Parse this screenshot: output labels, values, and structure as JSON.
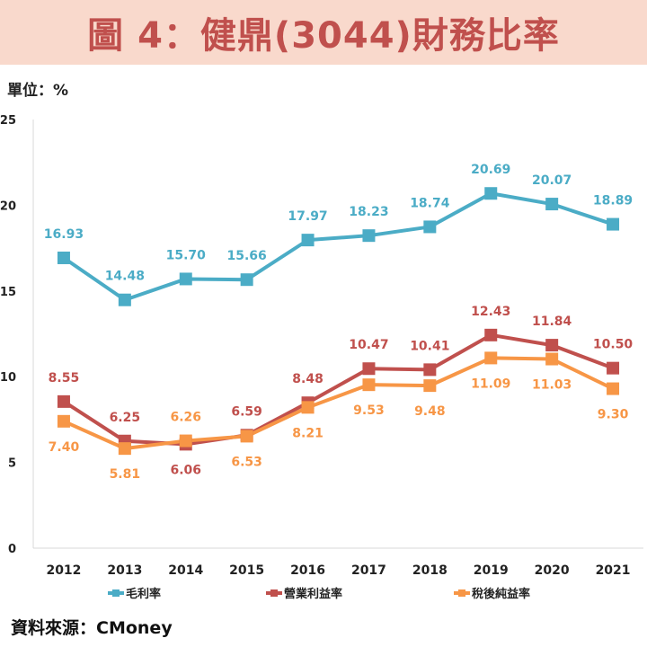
{
  "title": "圖 4：健鼎(3044)財務比率",
  "unit_label": "單位：%",
  "source": "資料來源：CMoney",
  "chart_data": {
    "type": "line",
    "title": "圖 4：健鼎(3044)財務比率",
    "xlabel": "",
    "ylabel": "單位：%",
    "categories": [
      "2012",
      "2013",
      "2014",
      "2015",
      "2016",
      "2017",
      "2018",
      "2019",
      "2020",
      "2021"
    ],
    "ylim": [
      0,
      25
    ],
    "yticks": [
      "0",
      "5",
      "10",
      "15",
      "20",
      "25"
    ],
    "grid": false,
    "legend_position": "bottom",
    "series": [
      {
        "name": "毛利率",
        "color": "#4bacc6",
        "label_color": "#4bacc6",
        "values": [
          16.93,
          14.48,
          15.7,
          15.66,
          17.97,
          18.23,
          18.74,
          20.69,
          20.07,
          18.89
        ],
        "labels": [
          "16.93",
          "14.48",
          "15.70",
          "15.66",
          "17.97",
          "18.23",
          "18.74",
          "20.69",
          "20.07",
          "18.89"
        ],
        "label_pos": [
          "above",
          "above",
          "above",
          "above",
          "above",
          "above",
          "above",
          "above",
          "above",
          "above"
        ]
      },
      {
        "name": "營業利益率",
        "color": "#c0504d",
        "label_color": "#c0504d",
        "values": [
          8.55,
          6.25,
          6.06,
          6.59,
          8.48,
          10.47,
          10.41,
          12.43,
          11.84,
          10.5
        ],
        "labels": [
          "8.55",
          "6.25",
          "6.06",
          "6.59",
          "8.48",
          "10.47",
          "10.41",
          "12.43",
          "11.84",
          "10.50"
        ],
        "label_pos": [
          "above",
          "above",
          "below",
          "above",
          "above",
          "above",
          "above",
          "above",
          "above",
          "above"
        ]
      },
      {
        "name": "稅後純益率",
        "color": "#f79646",
        "label_color": "#f79646",
        "values": [
          7.4,
          5.81,
          6.26,
          6.53,
          8.21,
          9.53,
          9.48,
          11.09,
          11.03,
          9.3
        ],
        "labels": [
          "7.40",
          "5.81",
          "6.26",
          "6.53",
          "8.21",
          "9.53",
          "9.48",
          "11.09",
          "11.03",
          "9.30"
        ],
        "label_pos": [
          "below",
          "below",
          "above",
          "below",
          "below",
          "below",
          "below",
          "below",
          "below",
          "below"
        ]
      }
    ]
  }
}
